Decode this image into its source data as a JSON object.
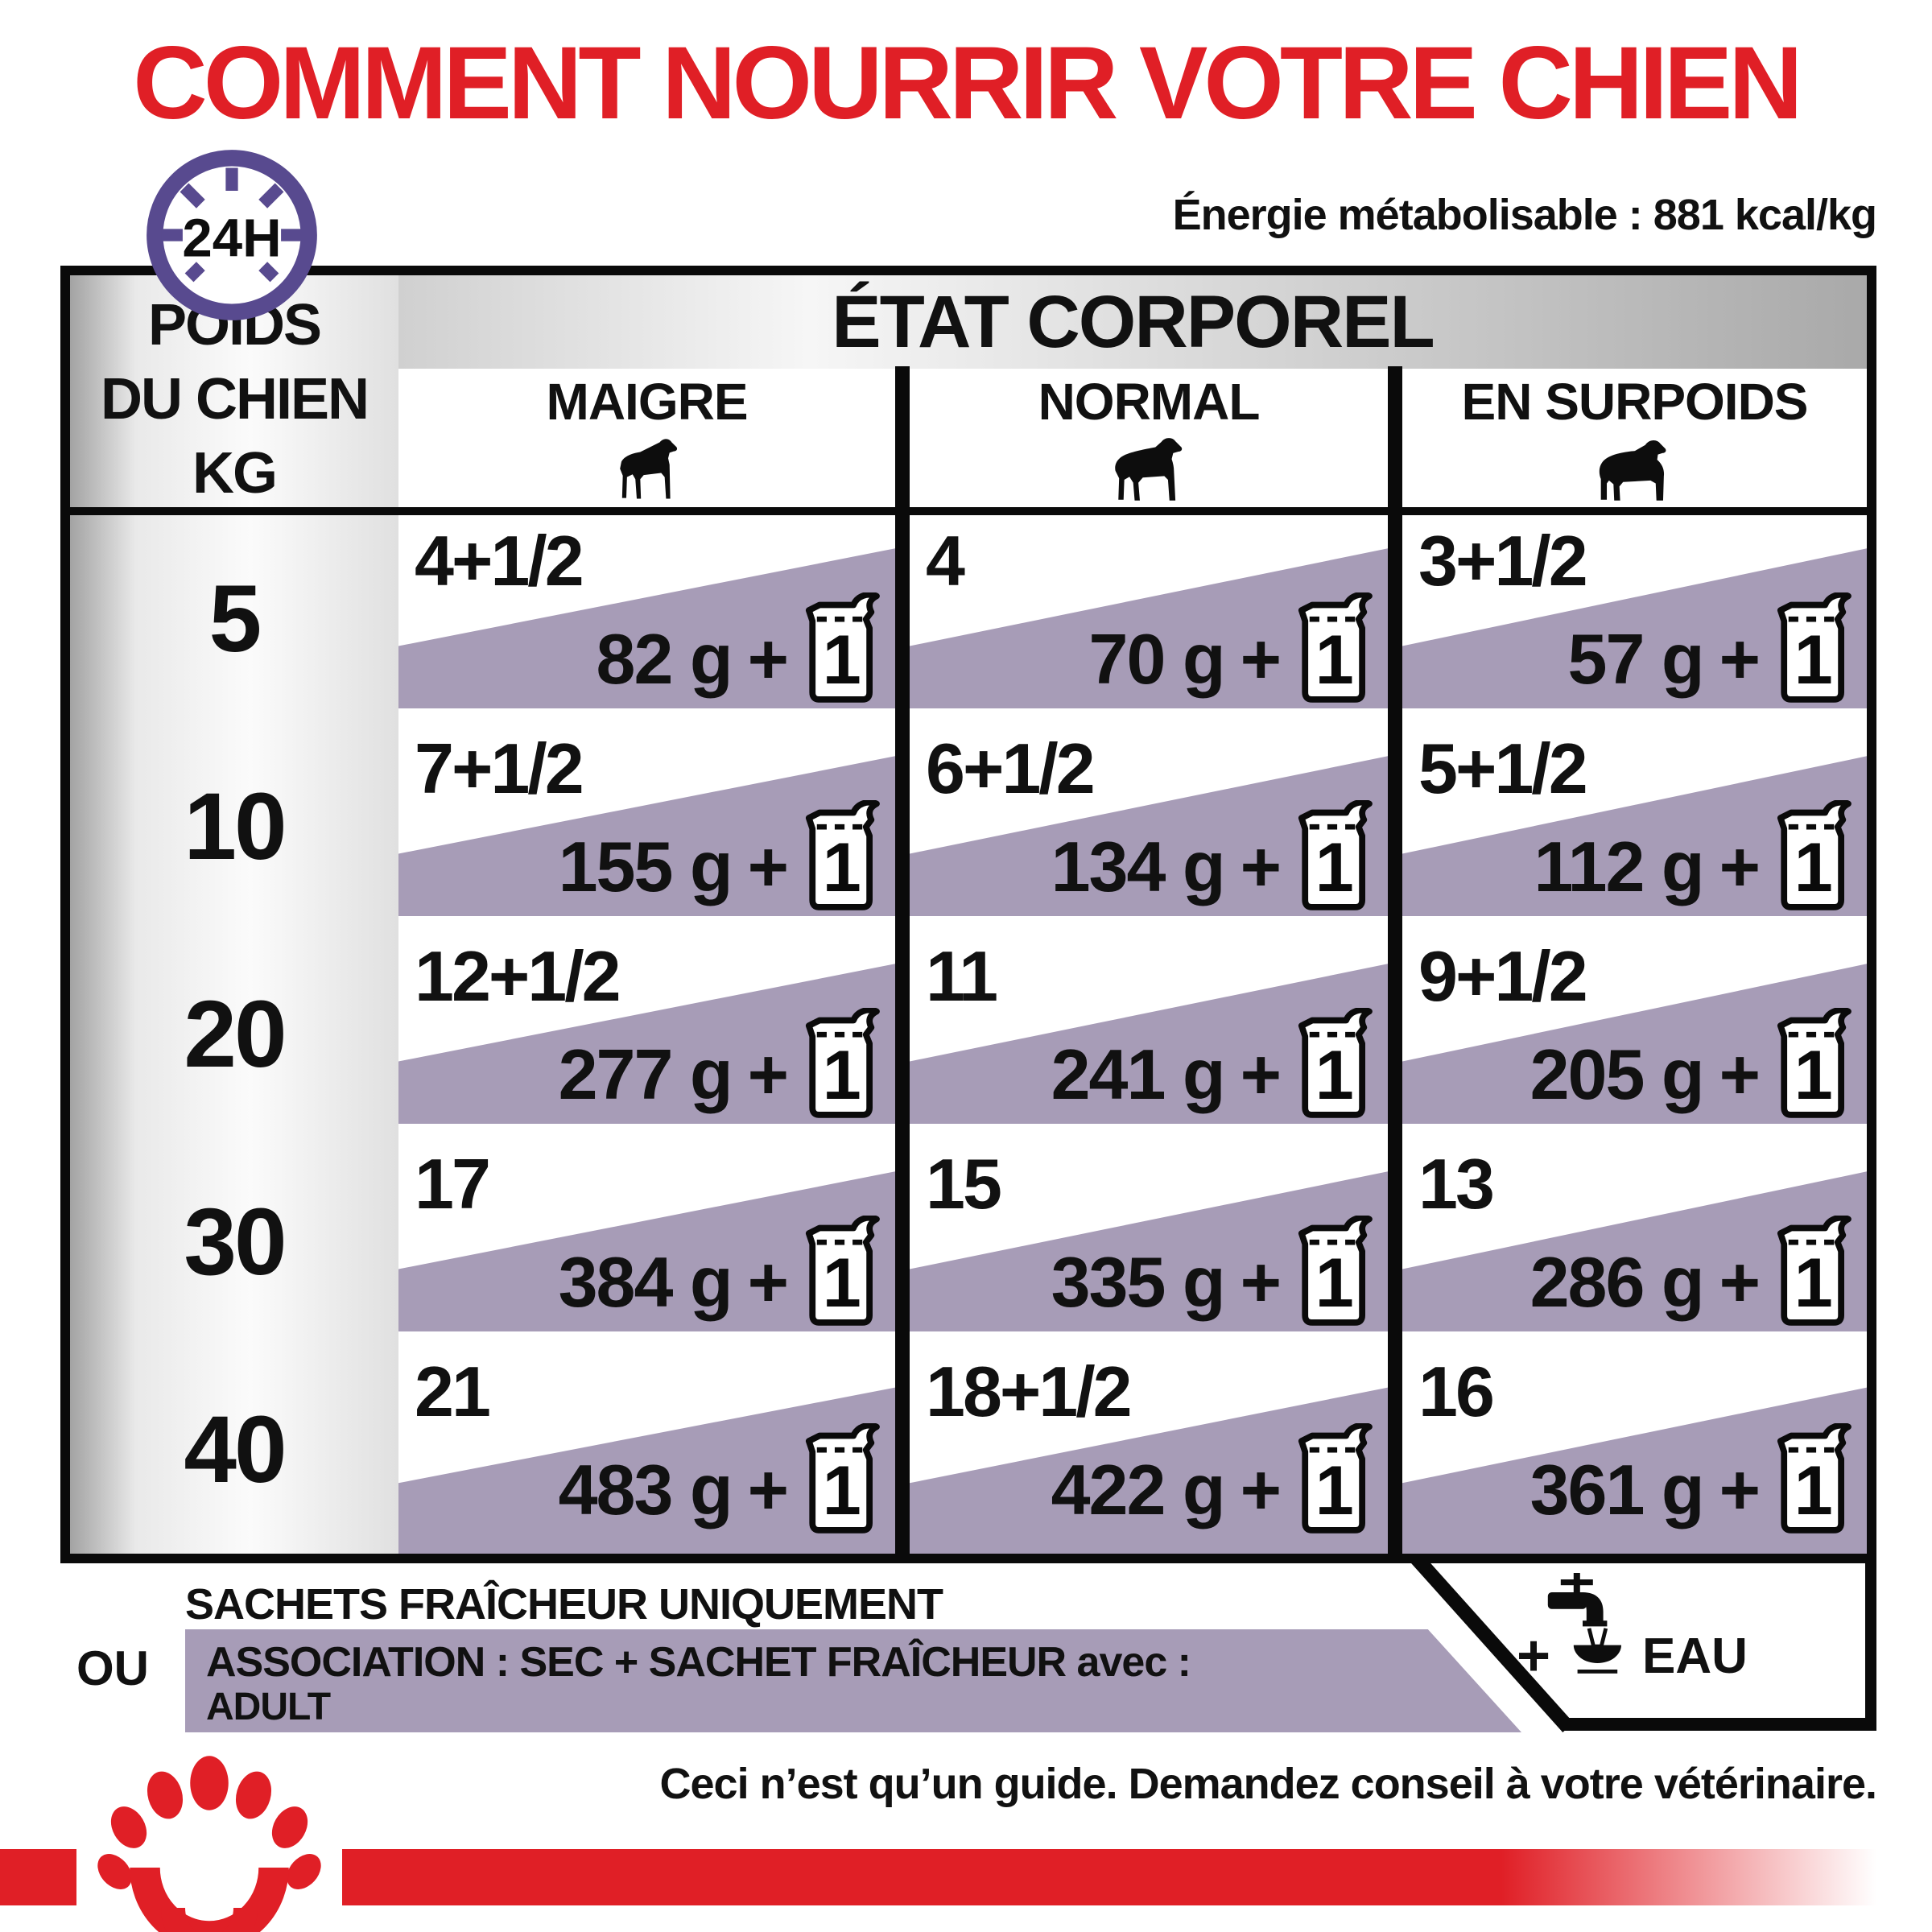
{
  "title": "COMMENT NOURRIR VOTRE CHIEN",
  "energy_note": "Énergie métabolisable : 881 kcal/kg",
  "clock_label": "24H",
  "table": {
    "weight_header_lines": [
      "POIDS",
      "DU CHIEN",
      "KG"
    ],
    "body_condition_header": "ÉTAT CORPOREL",
    "columns": [
      {
        "label": "MAIGRE",
        "icon": "thin-dog-icon"
      },
      {
        "label": "NORMAL",
        "icon": "normal-dog-icon"
      },
      {
        "label": "EN SURPOIDS",
        "icon": "overweight-dog-icon"
      }
    ],
    "pouch_badge": "1",
    "plus_sign": "+",
    "rows": [
      {
        "weight": "5",
        "cells": [
          {
            "pouches": "4+1/2",
            "grams": "82 g"
          },
          {
            "pouches": "4",
            "grams": "70 g"
          },
          {
            "pouches": "3+1/2",
            "grams": "57 g"
          }
        ]
      },
      {
        "weight": "10",
        "cells": [
          {
            "pouches": "7+1/2",
            "grams": "155 g"
          },
          {
            "pouches": "6+1/2",
            "grams": "134 g"
          },
          {
            "pouches": "5+1/2",
            "grams": "112 g"
          }
        ]
      },
      {
        "weight": "20",
        "cells": [
          {
            "pouches": "12+1/2",
            "grams": "277 g"
          },
          {
            "pouches": "11",
            "grams": "241 g"
          },
          {
            "pouches": "9+1/2",
            "grams": "205 g"
          }
        ]
      },
      {
        "weight": "30",
        "cells": [
          {
            "pouches": "17",
            "grams": "384 g"
          },
          {
            "pouches": "15",
            "grams": "335 g"
          },
          {
            "pouches": "13",
            "grams": "286 g"
          }
        ]
      },
      {
        "weight": "40",
        "cells": [
          {
            "pouches": "21",
            "grams": "483 g"
          },
          {
            "pouches": "18+1/2",
            "grams": "422 g"
          },
          {
            "pouches": "16",
            "grams": "361 g"
          }
        ]
      }
    ]
  },
  "footer": {
    "option1": "SACHETS FRAÎCHEUR UNIQUEMENT",
    "or_label": "OU",
    "option2_line1": "ASSOCIATION : SEC + SACHET FRAÎCHEUR avec :",
    "option2_line2": "ADULT",
    "plus_sign": "+",
    "water_label": "EAU",
    "disclaimer": "Ceci n’est qu’un guide. Demandez conseil à votre vétérinaire."
  },
  "colors": {
    "accent_red": "#e01f26",
    "lavender": "#a79cb7",
    "clock_purple": "#584a8f"
  }
}
